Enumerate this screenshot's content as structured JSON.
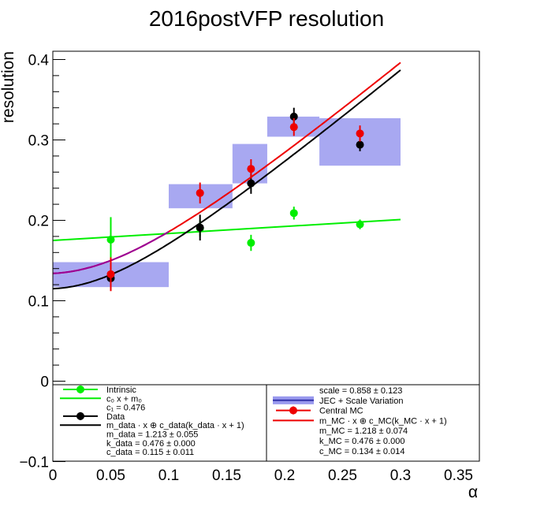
{
  "chart_data": {
    "type": "scatter",
    "title": "2016postVFP resolution",
    "xlabel": "α",
    "ylabel": "resolution",
    "xlim": [
      0,
      0.37
    ],
    "ylim": [
      -0.1,
      0.41
    ],
    "x_ticks": [
      0,
      0.05,
      0.1,
      0.15,
      0.2,
      0.25,
      0.3,
      0.35
    ],
    "x_tick_labels": [
      "0",
      "0.05",
      "0.1",
      "0.15",
      "0.2",
      "0.25",
      "0.3",
      "0.35"
    ],
    "y_ticks": [
      -0.1,
      0,
      0.1,
      0.2,
      0.3,
      0.4
    ],
    "y_tick_labels": [
      "−0.1",
      "0",
      "0.1",
      "0.2",
      "0.3",
      "0.4"
    ],
    "grid": false,
    "legend_placement": "bottom",
    "colors": {
      "intrinsic": "#00ee00",
      "data": "#000000",
      "central_mc": "#ee0000",
      "band": "#9999ee",
      "mc_fit": "#990099"
    },
    "series": [
      {
        "name": "Intrinsic",
        "x": [
          0.05,
          0.127,
          0.171,
          0.208,
          0.265
        ],
        "y": [
          0.176,
          0.19,
          0.172,
          0.209,
          0.195
        ],
        "yerr": [
          0.028,
          0.01,
          0.01,
          0.008,
          0.006
        ]
      },
      {
        "name": "Data",
        "x": [
          0.05,
          0.127,
          0.171,
          0.208,
          0.265
        ],
        "y": [
          0.128,
          0.191,
          0.246,
          0.329,
          0.294
        ],
        "yerr": [
          0.008,
          0.016,
          0.013,
          0.011,
          0.008
        ]
      },
      {
        "name": "Central MC",
        "x": [
          0.05,
          0.127,
          0.171,
          0.208,
          0.265
        ],
        "y": [
          0.133,
          0.234,
          0.264,
          0.316,
          0.308
        ],
        "yerr": [
          0.021,
          0.013,
          0.012,
          0.011,
          0.01
        ]
      },
      {
        "name": "JEC + Scale Variation",
        "boxes": [
          {
            "x0": 0.0,
            "x1": 0.1,
            "y0": 0.117,
            "y1": 0.148
          },
          {
            "x0": 0.1,
            "x1": 0.155,
            "y0": 0.215,
            "y1": 0.245
          },
          {
            "x0": 0.155,
            "x1": 0.185,
            "y0": 0.246,
            "y1": 0.295
          },
          {
            "x0": 0.185,
            "x1": 0.23,
            "y0": 0.304,
            "y1": 0.329
          },
          {
            "x0": 0.23,
            "x1": 0.3,
            "y0": 0.268,
            "y1": 0.327
          }
        ]
      }
    ],
    "fits": [
      {
        "name": "intrinsic_fit",
        "type": "linear",
        "x0": 0.0,
        "y0": 0.175,
        "x1": 0.3,
        "y1": 0.201
      },
      {
        "name": "data_fit",
        "type": "quadsum",
        "m": 1.213,
        "k": 0.476,
        "c": 0.115,
        "xmax": 0.3
      },
      {
        "name": "mc_fit",
        "type": "quadsum",
        "m": 1.218,
        "k": 0.476,
        "c": 0.134,
        "xmax": 0.3
      }
    ]
  },
  "legend": {
    "left": [
      {
        "marker": "point",
        "color": "intrinsic",
        "text": "Intrinsic"
      },
      {
        "marker": "line",
        "color": "intrinsic",
        "text": "c₀ x + m₀"
      },
      {
        "marker": "none",
        "text": "c₁ = 0.476"
      },
      {
        "marker": "point",
        "color": "data",
        "text": "Data"
      },
      {
        "marker": "line",
        "color": "data",
        "text": "m_data · x ⊕ c_data(k_data · x + 1)"
      },
      {
        "marker": "none",
        "text": "m_data = 1.213 ± 0.055"
      },
      {
        "marker": "none",
        "text": "k_data = 0.476 ± 0.000"
      },
      {
        "marker": "none",
        "text": "c_data = 0.115 ± 0.011"
      }
    ],
    "right": [
      {
        "marker": "none",
        "text": "scale = 0.858 ± 0.123"
      },
      {
        "marker": "band",
        "color": "band",
        "text": "JEC + Scale Variation"
      },
      {
        "marker": "point",
        "color": "central_mc",
        "text": "Central MC"
      },
      {
        "marker": "line",
        "color": "central_mc",
        "text": "m_MC · x ⊕ c_MC(k_MC · x + 1)"
      },
      {
        "marker": "none",
        "text": "m_MC = 1.218 ± 0.074"
      },
      {
        "marker": "none",
        "text": "k_MC = 0.476 ± 0.000"
      },
      {
        "marker": "none",
        "text": "c_MC = 0.134 ± 0.014"
      }
    ]
  }
}
